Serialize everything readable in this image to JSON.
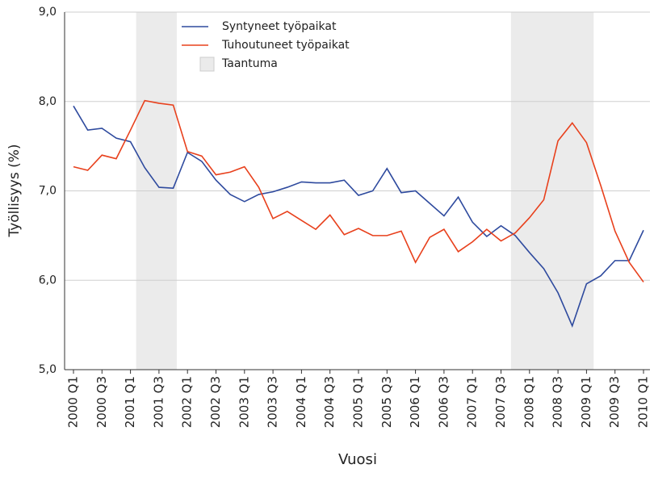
{
  "chart_data": {
    "type": "line",
    "y_label": "Työllisyys (%)",
    "x_label": "Vuosi",
    "categories": [
      "2000 Q1",
      null,
      "2000 Q3",
      null,
      "2001 Q1",
      null,
      "2001 Q3",
      null,
      "2002 Q1",
      null,
      "2002 Q3",
      null,
      "2003 Q1",
      null,
      "2003 Q3",
      null,
      "2004 Q1",
      null,
      "2004 Q3",
      null,
      "2005 Q1",
      null,
      "2005 Q3",
      null,
      "2006 Q1",
      null,
      "2006 Q3",
      null,
      "2007 Q1",
      null,
      "2007 Q3",
      null,
      "2008 Q1",
      null,
      "2008 Q3",
      null,
      "2009 Q1",
      null,
      "2009 Q3",
      null,
      "2010 Q1"
    ],
    "series": [
      {
        "name": "Syntyneet työpaikat",
        "color": "#2e4a9e",
        "values": [
          7.95,
          7.68,
          7.7,
          7.59,
          7.55,
          7.26,
          7.04,
          7.03,
          7.43,
          7.33,
          7.12,
          6.96,
          6.88,
          6.96,
          6.99,
          7.04,
          7.1,
          7.09,
          7.09,
          7.12,
          6.95,
          7.0,
          7.25,
          6.98,
          7.0,
          6.86,
          6.72,
          6.93,
          6.65,
          6.49,
          6.61,
          6.5,
          6.31,
          6.13,
          5.86,
          5.49,
          5.96,
          6.05,
          6.22,
          6.22,
          6.56
        ]
      },
      {
        "name": "Tuhoutuneet työpaikat",
        "color": "#e8401c",
        "values": [
          7.27,
          7.23,
          7.4,
          7.36,
          7.68,
          8.01,
          7.98,
          7.96,
          7.44,
          7.39,
          7.18,
          7.21,
          7.27,
          7.04,
          6.69,
          6.77,
          6.67,
          6.57,
          6.73,
          6.51,
          6.58,
          6.5,
          6.5,
          6.55,
          6.2,
          6.48,
          6.57,
          6.32,
          6.43,
          6.57,
          6.44,
          6.53,
          6.7,
          6.9,
          7.56,
          7.76,
          7.54,
          7.06,
          6.55,
          6.2,
          5.98
        ]
      }
    ],
    "shaded": {
      "name": "Taantuma",
      "color": "#ebebeb",
      "ranges": [
        [
          4.4,
          7.25
        ],
        [
          30.7,
          36.5
        ]
      ]
    },
    "ylim": [
      5,
      9
    ],
    "yticks": [
      {
        "value": 5,
        "label": "5,0"
      },
      {
        "value": 6,
        "label": "6,0"
      },
      {
        "value": 7,
        "label": "7,0"
      },
      {
        "value": 8,
        "label": "8,0"
      },
      {
        "value": 9,
        "label": "9,0"
      }
    ],
    "grid": true
  }
}
